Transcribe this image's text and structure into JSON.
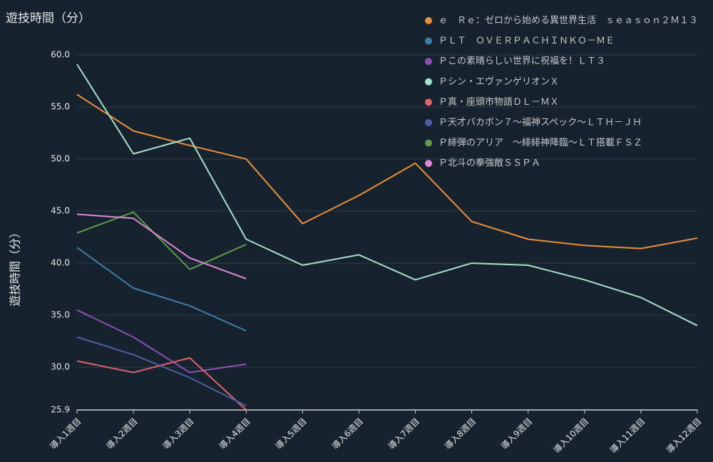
{
  "chart_data": {
    "type": "line",
    "title": "遊技時間（分）",
    "y_label": "遊技時間（分）",
    "categories": [
      "導入1週目",
      "導入2週目",
      "導入3週目",
      "導入4週目",
      "導入5週目",
      "導入6週目",
      "導入7週目",
      "導入8週目",
      "導入9週目",
      "導入10週目",
      "導入11週目",
      "導入12週目"
    ],
    "ylim": [
      25.9,
      60.0
    ],
    "yticks": [
      {
        "value": 25.9,
        "label": "25.9"
      },
      {
        "value": 30,
        "label": "30.0"
      },
      {
        "value": 35,
        "label": "35.0"
      },
      {
        "value": 40,
        "label": "40.0"
      },
      {
        "value": 45,
        "label": "45.0"
      },
      {
        "value": 50,
        "label": "50.0"
      },
      {
        "value": 55,
        "label": "55.0"
      },
      {
        "value": 60,
        "label": "60.0"
      }
    ],
    "grid": true,
    "legend": "top-right",
    "series": [
      {
        "name": "ｅ　Ｒｅ：ゼロから始める異世界生活　ｓｅａｓｏｎ２Ｍ１３",
        "color": "#e8903a",
        "values": [
          56.2,
          52.7,
          51.3,
          50.0,
          43.8,
          46.5,
          49.6,
          44.0,
          42.3,
          41.7,
          41.4,
          42.4
        ]
      },
      {
        "name": "ＰＬＴ　ＯＶＥＲＰＡＣＨＩＮＫＯ－ＭＥ",
        "color": "#3d7fa8",
        "values": [
          41.5,
          37.6,
          35.9,
          33.5,
          null,
          null,
          null,
          null,
          null,
          null,
          null,
          null
        ]
      },
      {
        "name": "Ｐこの素晴らしい世界に祝福を！ＬＴ３",
        "color": "#8e4fb5",
        "values": [
          35.5,
          32.9,
          29.5,
          30.3,
          null,
          null,
          null,
          null,
          null,
          null,
          null,
          null
        ]
      },
      {
        "name": "Ｐシン・エヴァンゲリオンＸ",
        "color": "#a6e0c8",
        "values": [
          59.1,
          50.5,
          52.0,
          42.3,
          39.8,
          40.8,
          38.4,
          40.0,
          39.8,
          38.4,
          36.7,
          34.0
        ]
      },
      {
        "name": "Ｐ真・座頭市物語ＤＬ－ＭＸ",
        "color": "#e0636b",
        "values": [
          30.6,
          29.5,
          30.9,
          25.9,
          null,
          null,
          null,
          null,
          null,
          null,
          null,
          null
        ]
      },
      {
        "name": "Ｐ天才バカボン７～福神スペック～ＬＴＨ－ＪＨ",
        "color": "#4a5fa6",
        "values": [
          32.9,
          31.2,
          29.0,
          26.3,
          null,
          null,
          null,
          null,
          null,
          null,
          null,
          null
        ]
      },
      {
        "name": "Ｐ緋弾のアリア　～緋緋神降臨～ＬＴ搭載ＦＳＺ",
        "color": "#5f9a4a",
        "values": [
          42.9,
          44.9,
          39.4,
          41.8,
          null,
          null,
          null,
          null,
          null,
          null,
          null,
          null
        ]
      },
      {
        "name": "Ｐ北斗の拳強敵ＳＳＰＡ",
        "color": "#e088d6",
        "values": [
          44.7,
          44.3,
          40.5,
          38.5,
          null,
          null,
          null,
          null,
          null,
          null,
          null,
          null
        ]
      }
    ]
  }
}
